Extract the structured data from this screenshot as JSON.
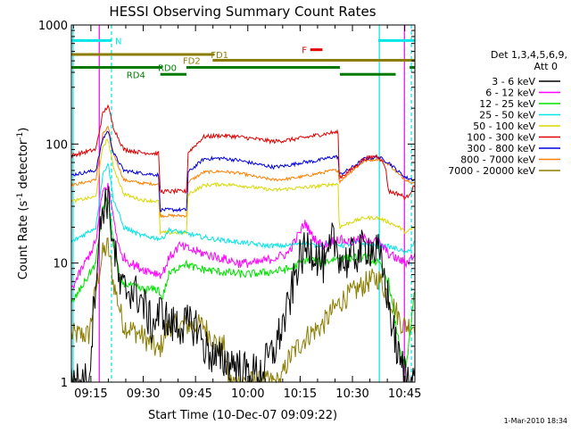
{
  "chart_data": {
    "type": "line",
    "title": "HESSI Observing Summary Count Rates",
    "xlabel": "Start Time (10-Dec-07 09:09:22)",
    "ylabel_main": "Count Rate (s",
    "ylabel_sup1": "-1",
    "ylabel_mid": " detector",
    "ylabel_sup2": "-1",
    "ylabel_end": ")",
    "y_scale": "log",
    "ylim": [
      1,
      1000
    ],
    "xlim_minutes": [
      0,
      98.5
    ],
    "x_ticks": [
      {
        "label": "09:15",
        "min": 5.6
      },
      {
        "label": "09:30",
        "min": 20.6
      },
      {
        "label": "09:45",
        "min": 35.6
      },
      {
        "label": "10:00",
        "min": 50.6
      },
      {
        "label": "10:15",
        "min": 65.6
      },
      {
        "label": "10:30",
        "min": 80.6
      },
      {
        "label": "10:45",
        "min": 95.6
      }
    ],
    "y_ticks": [
      {
        "label": "1",
        "value": 1
      },
      {
        "label": "10",
        "value": 10
      },
      {
        "label": "100",
        "value": 100
      },
      {
        "label": "1000",
        "value": 1000
      }
    ],
    "legend_title_1": "Det 1,3,4,5,6,9,",
    "legend_title_2": "Att 0",
    "legend_placement": "right",
    "timestamp": "1-Mar-2010 18:34",
    "flags": [
      {
        "label": "N",
        "color": "#00e5e5",
        "start": 0,
        "end": 11.5,
        "label_at": 13.5,
        "value": 740
      },
      {
        "label": "N",
        "color": "#00e5e5",
        "start": 88,
        "end": 98.5,
        "label_at": null,
        "value": 740
      },
      {
        "label": "F",
        "color": "#e00000",
        "start": 68.5,
        "end": 72,
        "label_at": 66.8,
        "value": 620
      },
      {
        "label": "FD1",
        "color": "#8b7d00",
        "start": 0,
        "end": 41,
        "label_at": 42.5,
        "value": 565
      },
      {
        "label": "FD2",
        "color": "#8b7d00",
        "start": 40.5,
        "end": 98.5,
        "label_at": 34.5,
        "value": 505
      },
      {
        "label": "RD0",
        "color": "#007a00",
        "start": 0,
        "end": 26,
        "label_at": 27.5,
        "value": 440
      },
      {
        "label": "RD0",
        "color": "#007a00",
        "start": 33,
        "end": 77,
        "label_at": null,
        "value": 440
      },
      {
        "label": "RD0",
        "color": "#007a00",
        "start": 97,
        "end": 98.5,
        "label_at": null,
        "value": 440
      },
      {
        "label": "RD4",
        "color": "#007a00",
        "start": 25.5,
        "end": 33,
        "label_at": 18.5,
        "value": 385
      },
      {
        "label": "RD4",
        "color": "#007a00",
        "start": 77,
        "end": 93,
        "label_at": null,
        "value": 385
      }
    ],
    "event_lines": [
      {
        "min": 0.5,
        "style": "solid",
        "color": "#00e5e5"
      },
      {
        "min": 11.5,
        "style": "dashed",
        "color": "#00e5e5"
      },
      {
        "min": 88.3,
        "style": "solid",
        "color": "#00e5e5"
      },
      {
        "min": 97.5,
        "style": "dashed",
        "color": "#00e5e5"
      },
      {
        "min": 8,
        "style": "solid",
        "color": "#ff00ff"
      },
      {
        "min": 95.5,
        "style": "solid",
        "color": "#ff00ff"
      }
    ],
    "series": [
      {
        "name": "3 - 6 keV",
        "color": "#000000",
        "points": [
          [
            0,
            1
          ],
          [
            5,
            1
          ],
          [
            7,
            8
          ],
          [
            9,
            30
          ],
          [
            10.5,
            35
          ],
          [
            12,
            15
          ],
          [
            14,
            6
          ],
          [
            17,
            6
          ],
          [
            20,
            5
          ],
          [
            23,
            3
          ],
          [
            26,
            4
          ],
          [
            28,
            3
          ],
          [
            32,
            3
          ],
          [
            36,
            3
          ],
          [
            38,
            2
          ],
          [
            42,
            1.5
          ],
          [
            46,
            1.5
          ],
          [
            50,
            1.2
          ],
          [
            54,
            1.2
          ],
          [
            58,
            1.8
          ],
          [
            62,
            4
          ],
          [
            65,
            10
          ],
          [
            68,
            14
          ],
          [
            70,
            12
          ],
          [
            73,
            9
          ],
          [
            75,
            16
          ],
          [
            78,
            10
          ],
          [
            82,
            12
          ],
          [
            85,
            14
          ],
          [
            88,
            12
          ],
          [
            90,
            7
          ],
          [
            92,
            3
          ],
          [
            94,
            1.5
          ],
          [
            96,
            1.2
          ],
          [
            98.5,
            1
          ]
        ],
        "noise": 0.35
      },
      {
        "name": "6 - 12 keV",
        "color": "#ff00ff",
        "points": [
          [
            0,
            6
          ],
          [
            7,
            15
          ],
          [
            9,
            40
          ],
          [
            10.5,
            45
          ],
          [
            12,
            25
          ],
          [
            14,
            12
          ],
          [
            17,
            10
          ],
          [
            20,
            9
          ],
          [
            26,
            8
          ],
          [
            28,
            11
          ],
          [
            31,
            14
          ],
          [
            34,
            13
          ],
          [
            38,
            12
          ],
          [
            43,
            11
          ],
          [
            48,
            10
          ],
          [
            53,
            10
          ],
          [
            58,
            11
          ],
          [
            62,
            12
          ],
          [
            65,
            17
          ],
          [
            67,
            22
          ],
          [
            69,
            17
          ],
          [
            72,
            14
          ],
          [
            76,
            16
          ],
          [
            80,
            15
          ],
          [
            84,
            16
          ],
          [
            88,
            15
          ],
          [
            91,
            12
          ],
          [
            93,
            11
          ],
          [
            96,
            10
          ],
          [
            98.5,
            12
          ]
        ],
        "noise": 0.08
      },
      {
        "name": "12 - 25 keV",
        "color": "#00e000",
        "points": [
          [
            0,
            4.5
          ],
          [
            7,
            10
          ],
          [
            9,
            30
          ],
          [
            10.5,
            35
          ],
          [
            12,
            15
          ],
          [
            14,
            7
          ],
          [
            20,
            6
          ],
          [
            25,
            6
          ],
          [
            26,
            5
          ],
          [
            28,
            8
          ],
          [
            32,
            10
          ],
          [
            36,
            9
          ],
          [
            42,
            8.5
          ],
          [
            50,
            8
          ],
          [
            58,
            8.5
          ],
          [
            63,
            9
          ],
          [
            68,
            11
          ],
          [
            72,
            10
          ],
          [
            76,
            11
          ],
          [
            80,
            11
          ],
          [
            84,
            11.5
          ],
          [
            88,
            10
          ],
          [
            91,
            7
          ],
          [
            93,
            3
          ],
          [
            95,
            1.5
          ],
          [
            96,
            1.3
          ],
          [
            98.5,
            6
          ]
        ],
        "noise": 0.07
      },
      {
        "name": "25 - 50 keV",
        "color": "#00e5e5",
        "points": [
          [
            0,
            15
          ],
          [
            7,
            20
          ],
          [
            9,
            55
          ],
          [
            10.5,
            70
          ],
          [
            12,
            35
          ],
          [
            15,
            20
          ],
          [
            20,
            17
          ],
          [
            26,
            16
          ],
          [
            28,
            19
          ],
          [
            32,
            18
          ],
          [
            40,
            16
          ],
          [
            48,
            15
          ],
          [
            56,
            14
          ],
          [
            62,
            14
          ],
          [
            66,
            15
          ],
          [
            70,
            14
          ],
          [
            74,
            15
          ],
          [
            78,
            14
          ],
          [
            82,
            15
          ],
          [
            86,
            14
          ],
          [
            90,
            14
          ],
          [
            94,
            13
          ],
          [
            96,
            12
          ],
          [
            98.5,
            15
          ]
        ],
        "noise": 0.04
      },
      {
        "name": "50 - 100 keV",
        "color": "#d8d800",
        "points": [
          [
            0,
            33
          ],
          [
            7,
            36
          ],
          [
            9,
            95
          ],
          [
            10.5,
            110
          ],
          [
            12,
            65
          ],
          [
            15,
            38
          ],
          [
            20,
            34
          ],
          [
            25,
            33
          ],
          [
            25.5,
            18
          ],
          [
            33,
            18
          ],
          [
            33.5,
            38
          ],
          [
            38,
            45
          ],
          [
            43,
            46
          ],
          [
            48,
            45
          ],
          [
            53,
            43
          ],
          [
            58,
            41
          ],
          [
            62,
            42
          ],
          [
            66,
            43
          ],
          [
            70,
            44
          ],
          [
            75,
            46
          ],
          [
            76.5,
            46
          ],
          [
            76.8,
            20
          ],
          [
            80,
            22
          ],
          [
            84,
            24
          ],
          [
            88,
            24
          ],
          [
            91,
            22
          ],
          [
            94,
            20
          ],
          [
            96,
            18
          ],
          [
            98.5,
            20
          ]
        ],
        "noise": 0.03
      },
      {
        "name": "100 - 300 keV",
        "color": "#e00000",
        "points": [
          [
            0,
            80
          ],
          [
            7,
            90
          ],
          [
            9,
            180
          ],
          [
            10.5,
            210
          ],
          [
            12,
            140
          ],
          [
            15,
            90
          ],
          [
            20,
            85
          ],
          [
            25,
            83
          ],
          [
            25.5,
            40
          ],
          [
            33,
            40
          ],
          [
            33.5,
            85
          ],
          [
            38,
            115
          ],
          [
            43,
            118
          ],
          [
            48,
            115
          ],
          [
            53,
            110
          ],
          [
            58,
            105
          ],
          [
            62,
            108
          ],
          [
            66,
            112
          ],
          [
            70,
            118
          ],
          [
            75,
            125
          ],
          [
            76.5,
            125
          ],
          [
            76.8,
            52
          ],
          [
            80,
            60
          ],
          [
            84,
            75
          ],
          [
            88,
            80
          ],
          [
            90,
            65
          ],
          [
            91,
            40
          ],
          [
            94,
            38
          ],
          [
            96,
            35
          ],
          [
            98.5,
            45
          ]
        ],
        "noise": 0.035
      },
      {
        "name": "300 - 800 keV",
        "color": "#0000e0",
        "points": [
          [
            0,
            55
          ],
          [
            7,
            60
          ],
          [
            9,
            110
          ],
          [
            10.5,
            130
          ],
          [
            12,
            85
          ],
          [
            15,
            60
          ],
          [
            20,
            57
          ],
          [
            25,
            55
          ],
          [
            25.5,
            28
          ],
          [
            33,
            28
          ],
          [
            33.5,
            58
          ],
          [
            38,
            75
          ],
          [
            43,
            76
          ],
          [
            48,
            73
          ],
          [
            53,
            68
          ],
          [
            58,
            64
          ],
          [
            62,
            66
          ],
          [
            66,
            70
          ],
          [
            70,
            72
          ],
          [
            75,
            78
          ],
          [
            76.5,
            78
          ],
          [
            76.8,
            55
          ],
          [
            80,
            62
          ],
          [
            84,
            75
          ],
          [
            88,
            78
          ],
          [
            91,
            70
          ],
          [
            94,
            58
          ],
          [
            96,
            52
          ],
          [
            98.5,
            50
          ]
        ],
        "noise": 0.03
      },
      {
        "name": "800 - 7000 keV",
        "color": "#ff8000",
        "points": [
          [
            0,
            45
          ],
          [
            7,
            50
          ],
          [
            9,
            120
          ],
          [
            10.5,
            140
          ],
          [
            12,
            85
          ],
          [
            15,
            50
          ],
          [
            20,
            47
          ],
          [
            25,
            46
          ],
          [
            25.5,
            25
          ],
          [
            33,
            25
          ],
          [
            33.5,
            48
          ],
          [
            38,
            58
          ],
          [
            43,
            59
          ],
          [
            48,
            57
          ],
          [
            53,
            53
          ],
          [
            58,
            50
          ],
          [
            62,
            51
          ],
          [
            66,
            53
          ],
          [
            70,
            56
          ],
          [
            75,
            60
          ],
          [
            76.5,
            60
          ],
          [
            76.8,
            48
          ],
          [
            80,
            58
          ],
          [
            84,
            72
          ],
          [
            88,
            75
          ],
          [
            91,
            68
          ],
          [
            94,
            55
          ],
          [
            96,
            50
          ],
          [
            98.5,
            47
          ]
        ],
        "noise": 0.025
      },
      {
        "name": "7000 - 20000 keV",
        "color": "#8b7d00",
        "points": [
          [
            0,
            2.5
          ],
          [
            5,
            2.5
          ],
          [
            7,
            6
          ],
          [
            9,
            12
          ],
          [
            10.5,
            14
          ],
          [
            12,
            7
          ],
          [
            15,
            3
          ],
          [
            20,
            2.5
          ],
          [
            25,
            1.8
          ],
          [
            28,
            3
          ],
          [
            33,
            3
          ],
          [
            38,
            3
          ],
          [
            42,
            2
          ],
          [
            44,
            2
          ],
          [
            45,
            1
          ],
          [
            55,
            1
          ],
          [
            60,
            1
          ],
          [
            62,
            1.5
          ],
          [
            65,
            2
          ],
          [
            68,
            2.5
          ],
          [
            72,
            3
          ],
          [
            75,
            4
          ],
          [
            78,
            5
          ],
          [
            82,
            6
          ],
          [
            85,
            7
          ],
          [
            88,
            7.5
          ],
          [
            90,
            6
          ],
          [
            93,
            4
          ],
          [
            95,
            3
          ],
          [
            98.5,
            3
          ]
        ],
        "noise": 0.2
      }
    ]
  }
}
